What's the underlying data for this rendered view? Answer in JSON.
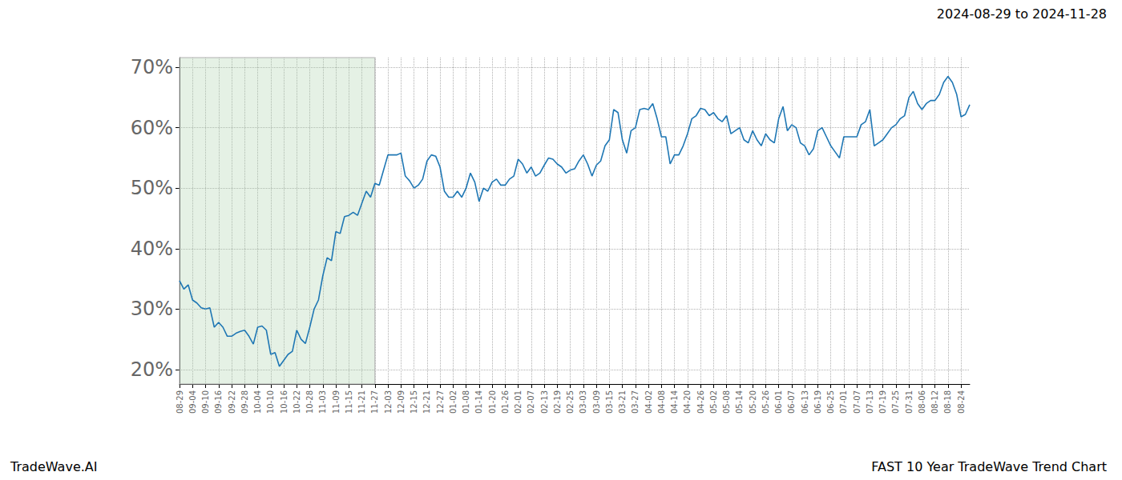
{
  "chart_data": {
    "type": "line",
    "title": "2024-08-29 to 2024-11-28",
    "footer_left": "TradeWave.AI",
    "footer_right": "FAST 10 Year TradeWave Trend Chart",
    "color": "#1f77b4",
    "highlight": [
      "08-29",
      "11-27"
    ],
    "grid": true,
    "categories": [
      "08-29",
      null,
      null,
      "09-04",
      null,
      null,
      "09-10",
      null,
      null,
      "09-16",
      null,
      null,
      "09-22",
      null,
      null,
      "09-28",
      null,
      null,
      "10-04",
      null,
      null,
      "10-10",
      null,
      null,
      "10-16",
      null,
      null,
      "10-22",
      null,
      null,
      "10-28",
      null,
      null,
      "11-03",
      null,
      null,
      "11-09",
      null,
      null,
      "11-15",
      null,
      null,
      "11-21",
      null,
      null,
      "11-27",
      null,
      null,
      "12-03",
      null,
      null,
      "12-09",
      null,
      null,
      "12-15",
      null,
      null,
      "12-21",
      null,
      null,
      "12-27",
      null,
      null,
      "01-02",
      null,
      null,
      "01-08",
      null,
      null,
      "01-14",
      null,
      null,
      "01-20",
      null,
      null,
      "01-26",
      null,
      null,
      "02-01",
      null,
      null,
      "02-07",
      null,
      null,
      "02-13",
      null,
      null,
      "02-19",
      null,
      null,
      "02-25",
      null,
      null,
      "03-03",
      null,
      null,
      "03-09",
      null,
      null,
      "03-15",
      null,
      null,
      "03-21",
      null,
      null,
      "03-27",
      null,
      null,
      "04-02",
      null,
      null,
      "04-08",
      null,
      null,
      "04-14",
      null,
      null,
      "04-20",
      null,
      null,
      "04-26",
      null,
      null,
      "05-02",
      null,
      null,
      "05-08",
      null,
      null,
      "05-14",
      null,
      null,
      "05-20",
      null,
      null,
      "05-26",
      null,
      null,
      "06-01",
      null,
      null,
      "06-07",
      null,
      null,
      "06-13",
      null,
      null,
      "06-19",
      null,
      null,
      "06-25",
      null,
      null,
      "07-01",
      null,
      null,
      "07-07",
      null,
      null,
      "07-13",
      null,
      null,
      "07-19",
      null,
      null,
      "07-25",
      null,
      null,
      "07-31",
      null,
      null,
      "08-06",
      null,
      null,
      "08-12",
      null,
      null,
      "08-18",
      null,
      null,
      "08-24",
      null,
      null
    ],
    "values": [
      34.7,
      33.3,
      34.0,
      31.5,
      31.0,
      30.2,
      30.0,
      30.2,
      27.0,
      27.8,
      27.0,
      25.5,
      25.5,
      26.0,
      26.3,
      26.5,
      25.5,
      24.2,
      27.0,
      27.2,
      26.5,
      22.5,
      22.8,
      20.5,
      21.5,
      22.5,
      23.0,
      26.5,
      25.0,
      24.3,
      27.0,
      30.0,
      31.5,
      35.5,
      38.5,
      38.0,
      42.8,
      42.5,
      45.3,
      45.5,
      46.0,
      45.5,
      47.5,
      49.5,
      48.5,
      50.8,
      50.5,
      53.0,
      55.5,
      55.5,
      55.5,
      55.8,
      52.0,
      51.2,
      50.0,
      50.5,
      51.5,
      54.5,
      55.5,
      55.3,
      53.5,
      49.5,
      48.5,
      48.5,
      49.5,
      48.5,
      50.0,
      52.5,
      51.0,
      47.8,
      50.0,
      49.5,
      51.0,
      51.5,
      50.5,
      50.5,
      51.5,
      52.0,
      54.8,
      54.0,
      52.5,
      53.5,
      52.0,
      52.5,
      53.8,
      55.0,
      54.8,
      54.0,
      53.5,
      52.5,
      53.0,
      53.2,
      54.5,
      55.5,
      54.0,
      52.0,
      53.8,
      54.5,
      57.0,
      58.0,
      63.0,
      62.5,
      58.0,
      55.8,
      59.5,
      60.0,
      63.0,
      63.2,
      63.0,
      64.0,
      61.5,
      58.5,
      58.5,
      54.0,
      55.5,
      55.5,
      57.0,
      59.0,
      61.5,
      62.0,
      63.2,
      63.0,
      62.0,
      62.5,
      61.5,
      61.0,
      62.0,
      59.0,
      59.5,
      60.0,
      58.0,
      57.5,
      59.5,
      58.0,
      57.0,
      59.0,
      58.0,
      57.5,
      61.5,
      63.5,
      59.5,
      60.5,
      60.0,
      57.5,
      57.0,
      55.5,
      56.5,
      59.5,
      60.0,
      58.5,
      57.0,
      56.0,
      55.0,
      58.5,
      58.5,
      58.5,
      58.5,
      60.5,
      61.0,
      63.0,
      57.0,
      57.5,
      58.0,
      59.0,
      60.0,
      60.5,
      61.5,
      62.0,
      65.0,
      66.0,
      64.0,
      63.0,
      64.0,
      64.5,
      64.5,
      65.5,
      67.5,
      68.5,
      67.5,
      65.5,
      61.8,
      62.2,
      63.8
    ],
    "ylim": [
      17.6,
      71.6
    ],
    "yticks": [
      {
        "value": 20,
        "label": "20%"
      },
      {
        "value": 30,
        "label": "30%"
      },
      {
        "value": 40,
        "label": "40%"
      },
      {
        "value": 50,
        "label": "50%"
      },
      {
        "value": 60,
        "label": "60%"
      },
      {
        "value": 70,
        "label": "70%"
      }
    ]
  }
}
